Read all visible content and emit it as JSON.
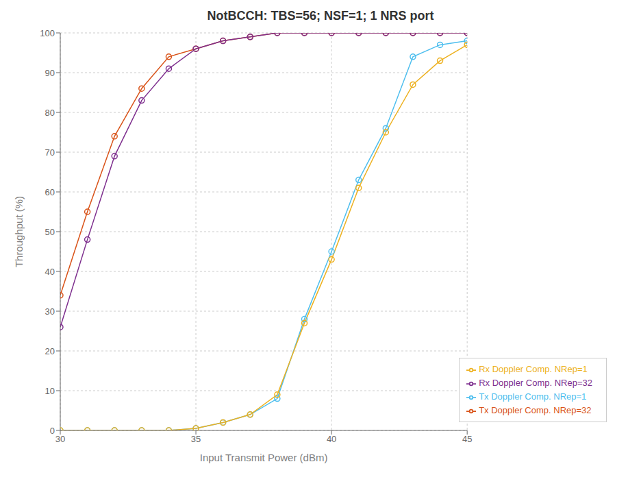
{
  "chart_data": {
    "type": "line",
    "title": "NotBCCH: TBS=56; NSF=1; 1 NRS port",
    "x_label": "Input Transmit Power (dBm)",
    "y_label": "Throughput (%)",
    "xlim": [
      30,
      45
    ],
    "ylim": [
      0,
      100
    ],
    "xticks": [
      30,
      35,
      40,
      45
    ],
    "yticks": [
      0,
      10,
      20,
      30,
      40,
      50,
      60,
      70,
      80,
      90,
      100
    ],
    "grid": true,
    "legend": "lower right",
    "marker": "circle",
    "line_style": "solid",
    "series": [
      {
        "name": "Tx Doppler Comp. NRep=1",
        "color": "#4DBEEE",
        "x": [
          30,
          31,
          32,
          33,
          34,
          35,
          36,
          37,
          38,
          39,
          40,
          41,
          42,
          43,
          44,
          45
        ],
        "values": [
          0,
          0,
          0,
          0,
          0,
          0.5,
          2,
          4,
          8,
          28,
          45,
          63,
          76,
          94,
          97,
          98
        ]
      },
      {
        "name": "Tx Doppler Comp. NRep=32",
        "color": "#D95319",
        "x": [
          30,
          31,
          32,
          33,
          34,
          35,
          36,
          37,
          38,
          39,
          40,
          41,
          42,
          43,
          44,
          45
        ],
        "values": [
          34,
          55,
          74,
          86,
          94,
          96,
          98,
          99,
          100,
          100,
          100,
          100,
          100,
          100,
          100,
          100
        ]
      },
      {
        "name": "Rx Doppler Comp. NRep=1",
        "color": "#EDB120",
        "x": [
          30,
          31,
          32,
          33,
          34,
          35,
          36,
          37,
          38,
          39,
          40,
          41,
          42,
          43,
          44,
          45
        ],
        "values": [
          0,
          0,
          0,
          0,
          0,
          0.5,
          2,
          4,
          9,
          27,
          43,
          61,
          75,
          87,
          93,
          97
        ]
      },
      {
        "name": "Rx Doppler Comp. NRep=32",
        "color": "#7E2F8E",
        "x": [
          30,
          31,
          32,
          33,
          34,
          35,
          36,
          37,
          38,
          39,
          40,
          41,
          42,
          43,
          44,
          45
        ],
        "values": [
          26,
          48,
          69,
          83,
          91,
          96,
          98,
          99,
          100,
          100,
          100,
          100,
          100,
          100,
          100,
          100
        ]
      }
    ]
  }
}
